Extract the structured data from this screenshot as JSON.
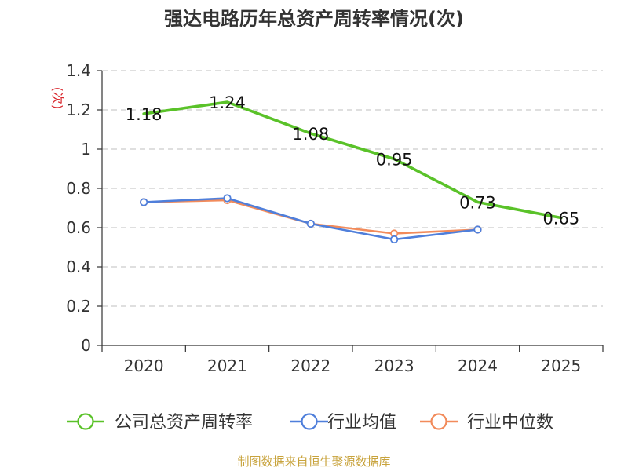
{
  "chart_data": {
    "type": "line",
    "title": "强达电路历年总资产周转率情况(次)",
    "ylabel": "(次)",
    "xlabel": "",
    "categories": [
      "2020",
      "2021",
      "2022",
      "2023",
      "2024",
      "2025"
    ],
    "ylim": [
      0,
      1.4
    ],
    "yticks": [
      0,
      0.2,
      0.4,
      0.6,
      0.8,
      1,
      1.2,
      1.4
    ],
    "ytick_labels": [
      "0",
      "0.2",
      "0.4",
      "0.6",
      "0.8",
      "1",
      "1.2",
      "1.4"
    ],
    "grid": true,
    "legend_position": "bottom",
    "series": [
      {
        "name": "公司总资产周转率",
        "color": "#5ac229",
        "values": [
          1.18,
          1.24,
          1.08,
          0.95,
          0.73,
          0.65
        ],
        "labels": [
          "1.18",
          "1.24",
          "1.08",
          "0.95",
          "0.73",
          "0.65"
        ],
        "show_markers": false,
        "show_labels": true
      },
      {
        "name": "行业均值",
        "color": "#4f7fdb",
        "values": [
          0.73,
          0.75,
          0.62,
          0.54,
          0.59,
          null
        ],
        "show_markers": true,
        "show_labels": false
      },
      {
        "name": "行业中位数",
        "color": "#f28b5b",
        "values": [
          0.73,
          0.74,
          0.62,
          0.57,
          0.59,
          null
        ],
        "show_markers": true,
        "show_labels": false
      }
    ]
  },
  "source_note": "制图数据来自恒生聚源数据库"
}
